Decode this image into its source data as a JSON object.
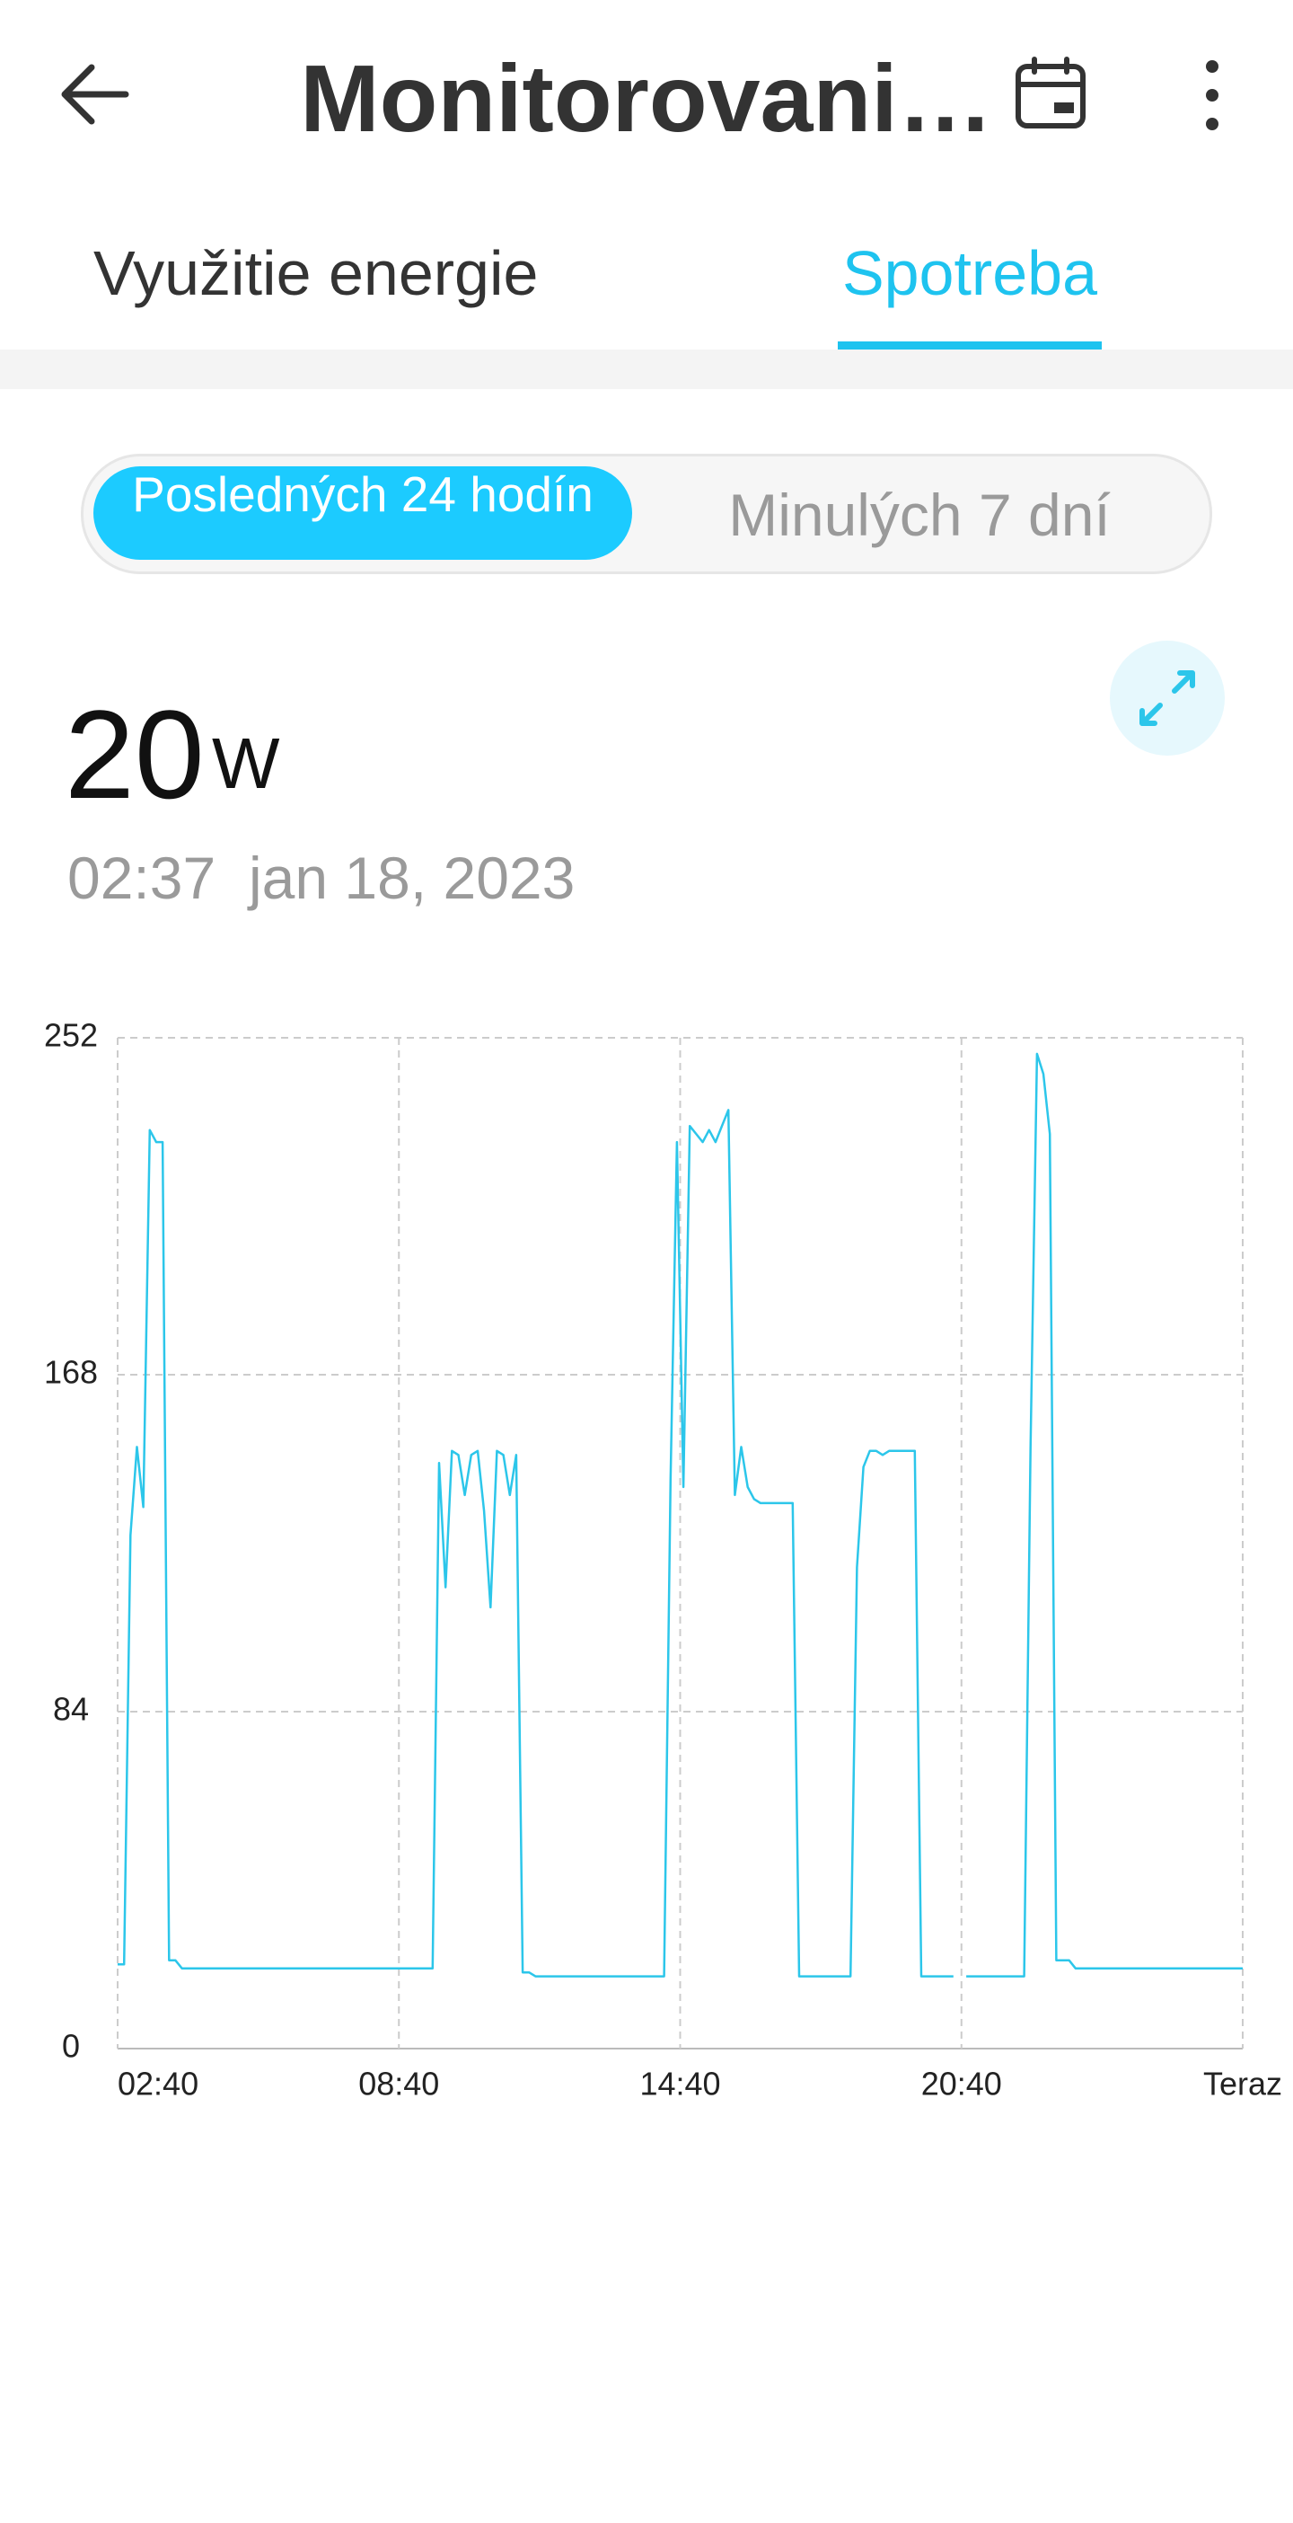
{
  "header": {
    "title": "Monitorovani…"
  },
  "tabs": [
    "Využitie energie",
    "Spotreba"
  ],
  "range_toggle": [
    "Posledných 24 hodín",
    "Minulých 7 dní"
  ],
  "reading": {
    "value": 20,
    "unit": "W",
    "time": "02:37",
    "date": "jan 18, 2023"
  },
  "chart_data": {
    "type": "line",
    "color": "#2cc6ea",
    "x_labels": [
      "02:40",
      "08:40",
      "14:40",
      "20:40",
      "Teraz"
    ],
    "values": [
      21,
      21,
      128,
      150,
      135,
      229,
      226,
      226,
      22,
      22,
      20,
      20,
      20,
      20,
      20,
      20,
      20,
      20,
      20,
      20,
      20,
      20,
      20,
      20,
      20,
      20,
      20,
      20,
      20,
      20,
      20,
      20,
      20,
      20,
      20,
      20,
      20,
      20,
      20,
      20,
      20,
      20,
      20,
      20,
      20,
      20,
      20,
      20,
      20,
      20,
      146,
      115,
      149,
      148,
      138,
      148,
      149,
      134,
      110,
      149,
      148,
      138,
      148,
      19,
      19,
      18,
      18,
      18,
      18,
      18,
      18,
      18,
      18,
      18,
      18,
      18,
      18,
      18,
      18,
      18,
      18,
      18,
      18,
      18,
      18,
      18,
      142,
      226,
      140,
      230,
      228,
      226,
      229,
      226,
      230,
      234,
      138,
      150,
      140,
      137,
      136,
      136,
      136,
      136,
      136,
      136,
      18,
      18,
      18,
      18,
      18,
      18,
      18,
      18,
      18,
      120,
      145,
      149,
      149,
      148,
      149,
      149,
      149,
      149,
      149,
      18,
      18,
      18,
      18,
      18,
      18,
      null,
      18,
      18,
      18,
      18,
      18,
      18,
      18,
      18,
      18,
      18,
      150,
      248,
      243,
      228,
      22,
      22,
      22,
      20,
      20,
      20,
      20,
      20,
      20,
      20,
      20,
      20,
      20,
      20,
      20,
      20,
      20,
      20,
      20,
      20,
      20,
      20,
      20,
      20,
      20,
      20,
      20,
      20,
      20,
      20
    ],
    "ylim": [
      0,
      252
    ],
    "yticks": [
      0,
      84,
      168,
      252
    ],
    "grid": true
  }
}
